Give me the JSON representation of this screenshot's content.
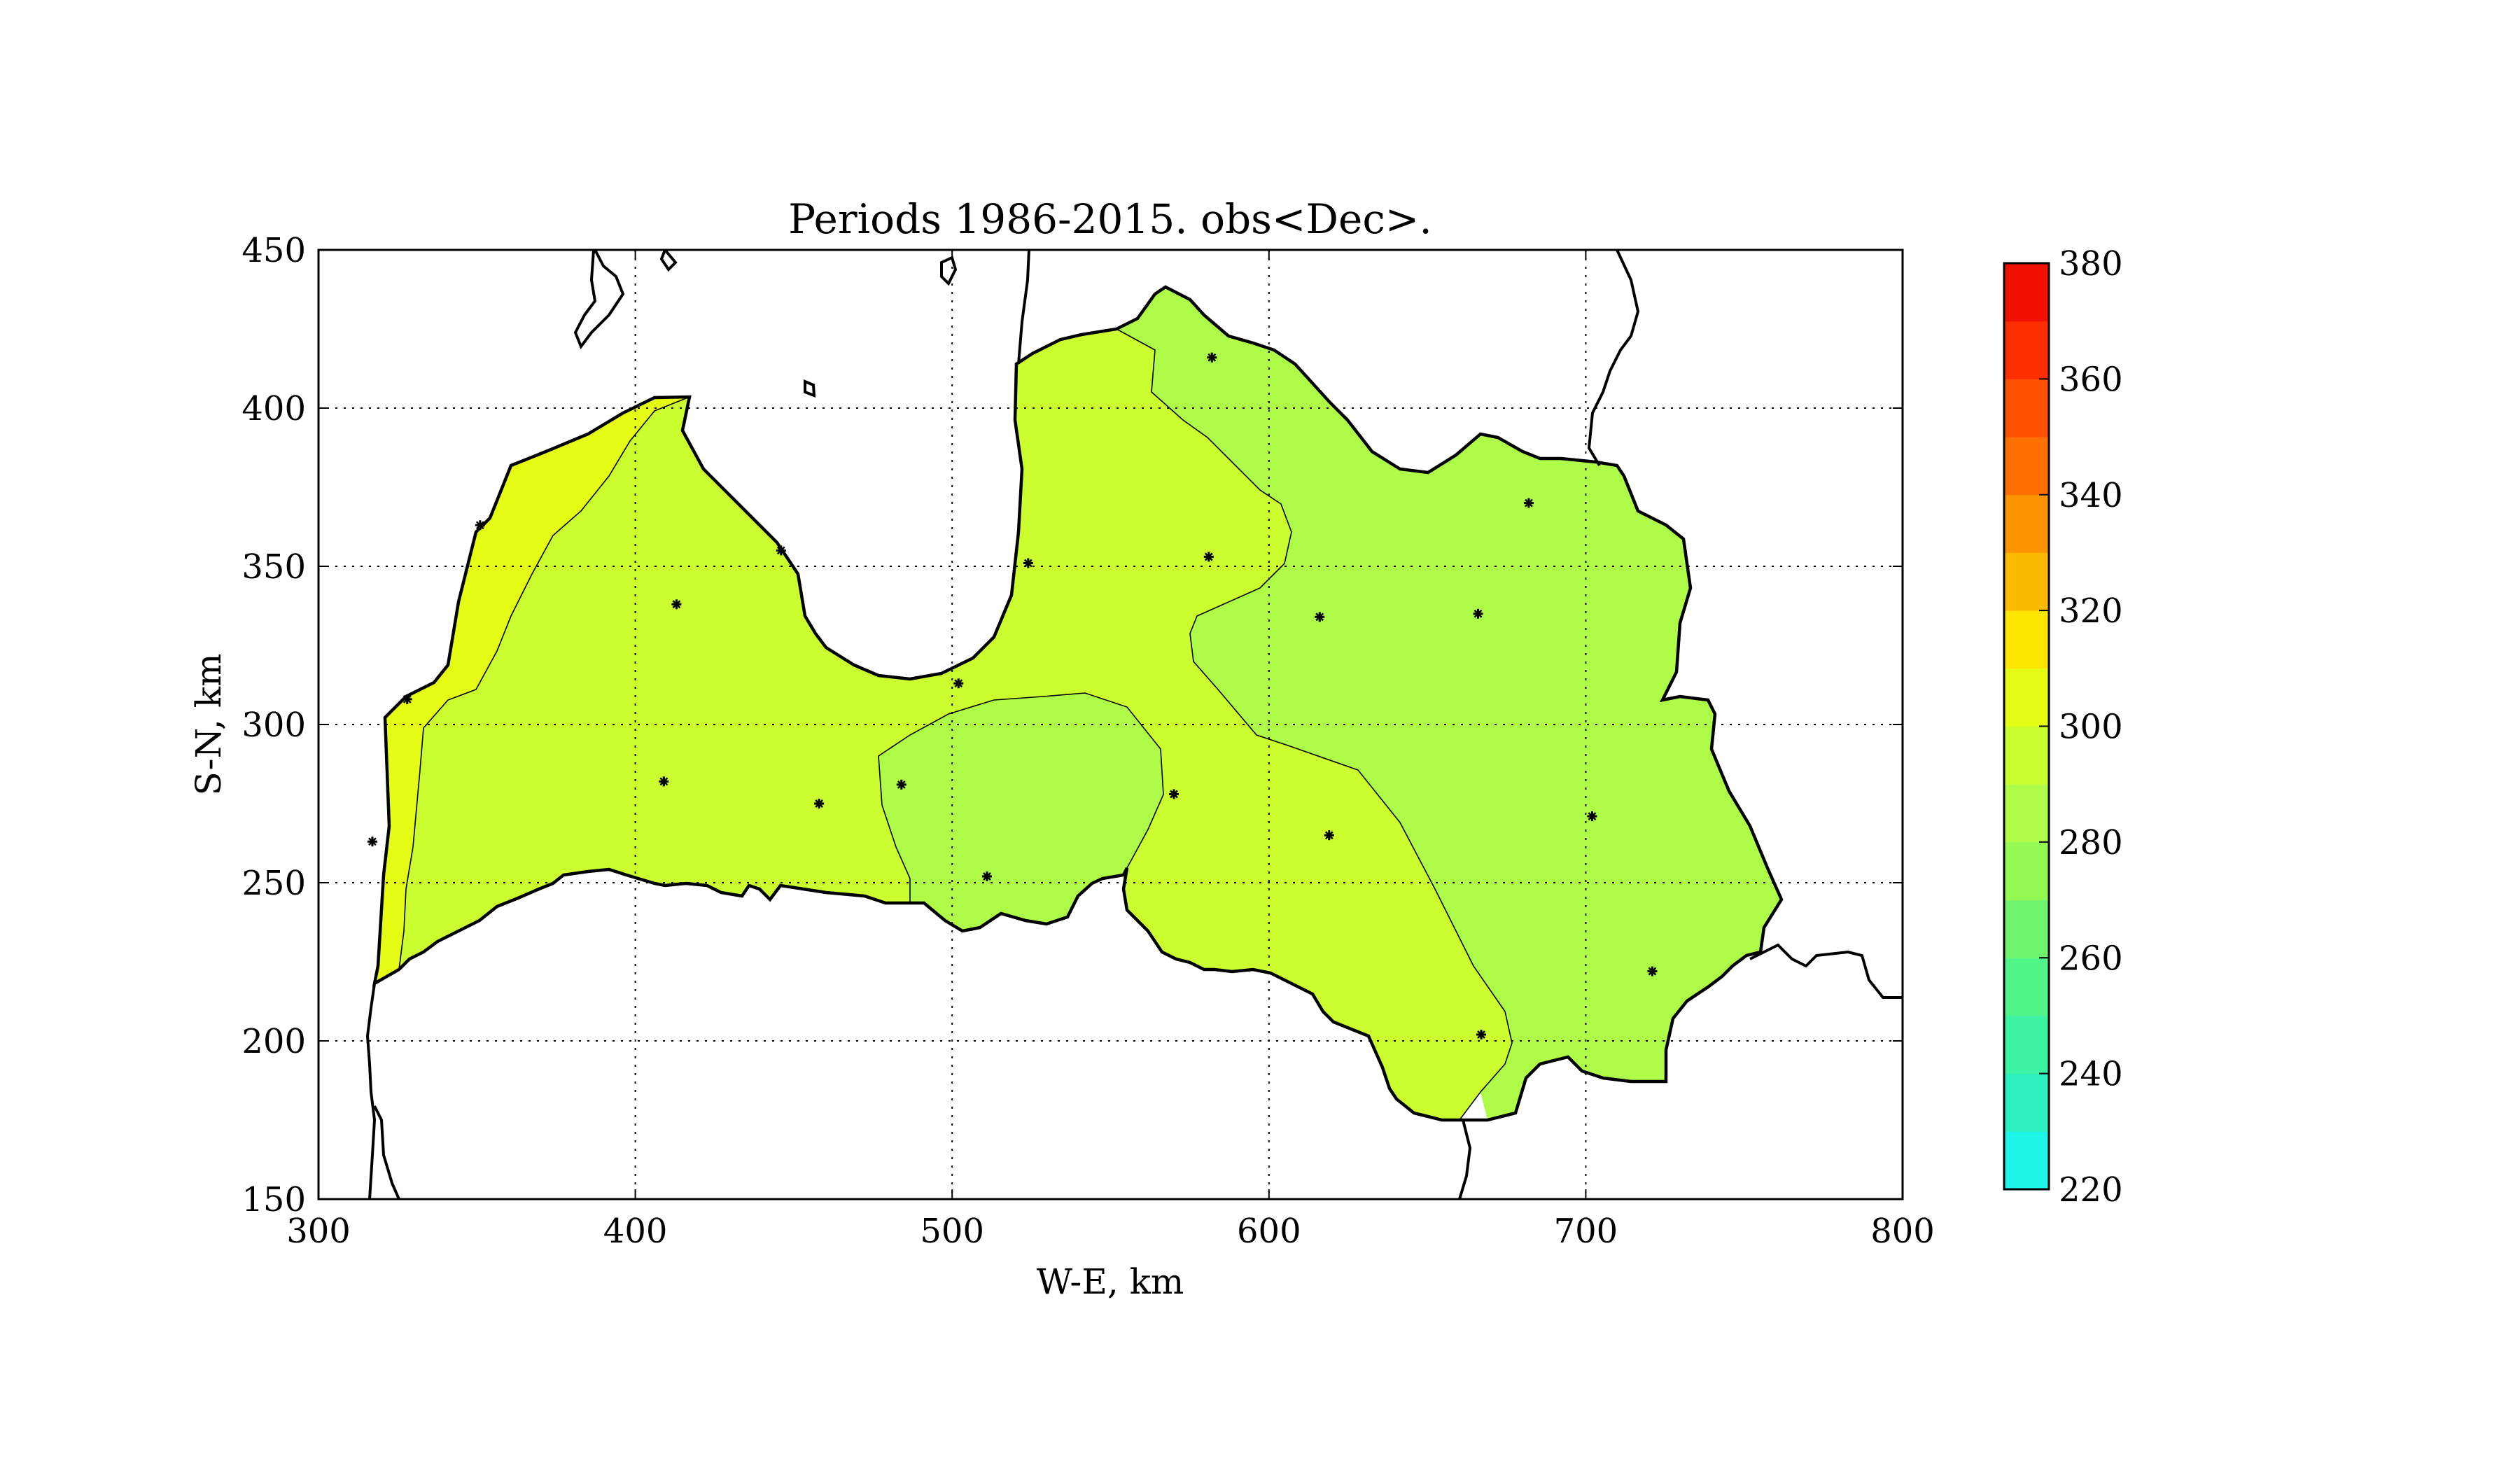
{
  "figure": {
    "title": "Periods 1986-2015. obs<Dec>.",
    "xlabel": "W-E, km",
    "ylabel": "S-N, km"
  },
  "chart_data": {
    "type": "contour-map",
    "title": "Periods 1986-2015. obs<Dec>.",
    "xlabel": "W-E, km",
    "ylabel": "S-N, km",
    "xlim": [
      300,
      800
    ],
    "ylim": [
      150,
      450
    ],
    "x_ticks": [
      "300",
      "400",
      "500",
      "600",
      "700",
      "800"
    ],
    "y_ticks": [
      "150",
      "200",
      "250",
      "300",
      "350",
      "400",
      "450"
    ],
    "grid": true,
    "grid_style": "dotted",
    "colorbar": {
      "levels": [
        220,
        230,
        240,
        250,
        260,
        270,
        280,
        290,
        300,
        310,
        320,
        330,
        340,
        350,
        360,
        370,
        380
      ],
      "tick_labels": [
        "220",
        "240",
        "260",
        "280",
        "300",
        "320",
        "340",
        "360",
        "380"
      ],
      "colors": [
        "#1ef5e8",
        "#2cf0bd",
        "#3df2a3",
        "#52f587",
        "#6ef56d",
        "#95f954",
        "#aefc47",
        "#cafe2f",
        "#e5fd14",
        "#fde600",
        "#fdbb00",
        "#fd9500",
        "#fd7000",
        "#fd5000",
        "#fd2f00",
        "#f00f00",
        "#c40000"
      ]
    },
    "region_colors": {
      "band_270_280": "#aefc47",
      "band_280_290": "#cafe2f",
      "band_290_300": "#e5fd14"
    },
    "stations": [
      {
        "x": 413,
        "y": 338
      },
      {
        "x": 409,
        "y": 282
      },
      {
        "x": 458,
        "y": 275
      },
      {
        "x": 484,
        "y": 281
      },
      {
        "x": 502,
        "y": 313
      },
      {
        "x": 524,
        "y": 351
      },
      {
        "x": 511,
        "y": 252
      },
      {
        "x": 570,
        "y": 278
      },
      {
        "x": 581,
        "y": 353
      },
      {
        "x": 582,
        "y": 416
      },
      {
        "x": 616,
        "y": 334
      },
      {
        "x": 619,
        "y": 265
      },
      {
        "x": 666,
        "y": 335
      },
      {
        "x": 682,
        "y": 370
      },
      {
        "x": 702,
        "y": 271
      },
      {
        "x": 721,
        "y": 222
      },
      {
        "x": 667,
        "y": 202
      },
      {
        "x": 446,
        "y": 355
      },
      {
        "x": 351,
        "y": 363
      },
      {
        "x": 328,
        "y": 308
      },
      {
        "x": 317,
        "y": 263
      }
    ]
  }
}
